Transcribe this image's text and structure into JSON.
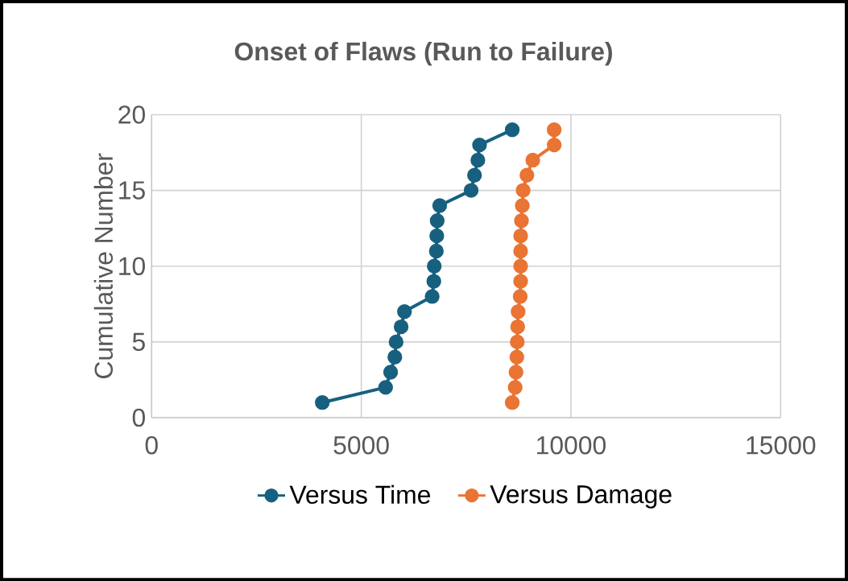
{
  "chart_data": {
    "type": "line",
    "title": "Onset of Flaws (Run to Failure)",
    "ylabel": "Cumulative Number",
    "xlim": [
      0,
      15000
    ],
    "xticks": [
      0,
      5000,
      10000,
      15000
    ],
    "ylim": [
      0,
      20
    ],
    "yticks": [
      0,
      5,
      10,
      15,
      20
    ],
    "grid": true,
    "legend": "bottom",
    "marker": "circle",
    "line_style": "solid",
    "series": [
      {
        "name": "Versus Time",
        "color": "#17607f",
        "x": [
          4070,
          5580,
          5700,
          5800,
          5830,
          5950,
          6030,
          6690,
          6730,
          6740,
          6790,
          6800,
          6810,
          6870,
          7620,
          7700,
          7780,
          7820,
          8600
        ],
        "values": [
          1,
          2,
          3,
          4,
          5,
          6,
          7,
          8,
          9,
          10,
          11,
          12,
          13,
          14,
          15,
          16,
          17,
          18,
          19
        ]
      },
      {
        "name": "Versus Damage",
        "color": "#e97433",
        "x": [
          8600,
          8670,
          8690,
          8710,
          8720,
          8730,
          8740,
          8790,
          8800,
          8800,
          8800,
          8800,
          8820,
          8840,
          8860,
          8950,
          9090,
          9600,
          9600
        ],
        "values": [
          1,
          2,
          3,
          4,
          5,
          6,
          7,
          8,
          9,
          10,
          11,
          12,
          13,
          14,
          15,
          16,
          17,
          18,
          19
        ]
      }
    ]
  }
}
